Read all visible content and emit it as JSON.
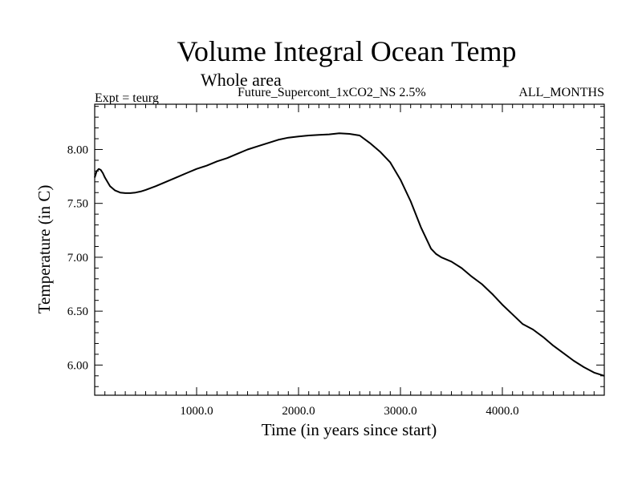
{
  "chart_data": {
    "type": "line",
    "title": "Volume Integral Ocean Temp",
    "subtitle": "Whole area",
    "annotations": {
      "experiment": "Expt = teurg",
      "run": "Future_Supercont_1xCO2_NS 2.5%",
      "months": "ALL_MONTHS"
    },
    "xlabel": "Time (in years since start)",
    "ylabel": "Temperature (in C)",
    "xlim": [
      0,
      5000
    ],
    "ylim": [
      5.72,
      8.42
    ],
    "xticks": [
      {
        "value": 1000,
        "label": "1000.0"
      },
      {
        "value": 2000,
        "label": "2000.0"
      },
      {
        "value": 3000,
        "label": "3000.0"
      },
      {
        "value": 4000,
        "label": "4000.0"
      }
    ],
    "yticks": [
      {
        "value": 6.0,
        "label": "6.00"
      },
      {
        "value": 6.5,
        "label": "6.50"
      },
      {
        "value": 7.0,
        "label": "7.00"
      },
      {
        "value": 7.5,
        "label": "7.50"
      },
      {
        "value": 8.0,
        "label": "8.00"
      }
    ],
    "grid": false,
    "line_color": "#000000",
    "series": [
      {
        "x": [
          0,
          20,
          40,
          60,
          80,
          100,
          150,
          200,
          250,
          300,
          350,
          400,
          450,
          500,
          600,
          700,
          800,
          900,
          1000,
          1100,
          1200,
          1300,
          1400,
          1500,
          1600,
          1700,
          1800,
          1900,
          2000,
          2100,
          2200,
          2300,
          2400,
          2500,
          2600,
          2700,
          2800,
          2900,
          3000,
          3100,
          3200,
          3300,
          3350,
          3400,
          3500,
          3600,
          3700,
          3800,
          3900,
          4000,
          4100,
          4200,
          4300,
          4400,
          4500,
          4600,
          4700,
          4800,
          4900,
          5000
        ],
        "y": [
          7.74,
          7.8,
          7.82,
          7.81,
          7.78,
          7.74,
          7.66,
          7.62,
          7.6,
          7.595,
          7.595,
          7.6,
          7.61,
          7.625,
          7.66,
          7.7,
          7.74,
          7.78,
          7.82,
          7.85,
          7.89,
          7.92,
          7.96,
          8.0,
          8.03,
          8.06,
          8.09,
          8.11,
          8.12,
          8.13,
          8.135,
          8.14,
          8.15,
          8.145,
          8.13,
          8.06,
          7.98,
          7.88,
          7.72,
          7.52,
          7.28,
          7.08,
          7.03,
          7.0,
          6.96,
          6.9,
          6.82,
          6.75,
          6.66,
          6.56,
          6.47,
          6.38,
          6.33,
          6.26,
          6.18,
          6.11,
          6.04,
          5.98,
          5.93,
          5.9
        ]
      }
    ]
  }
}
